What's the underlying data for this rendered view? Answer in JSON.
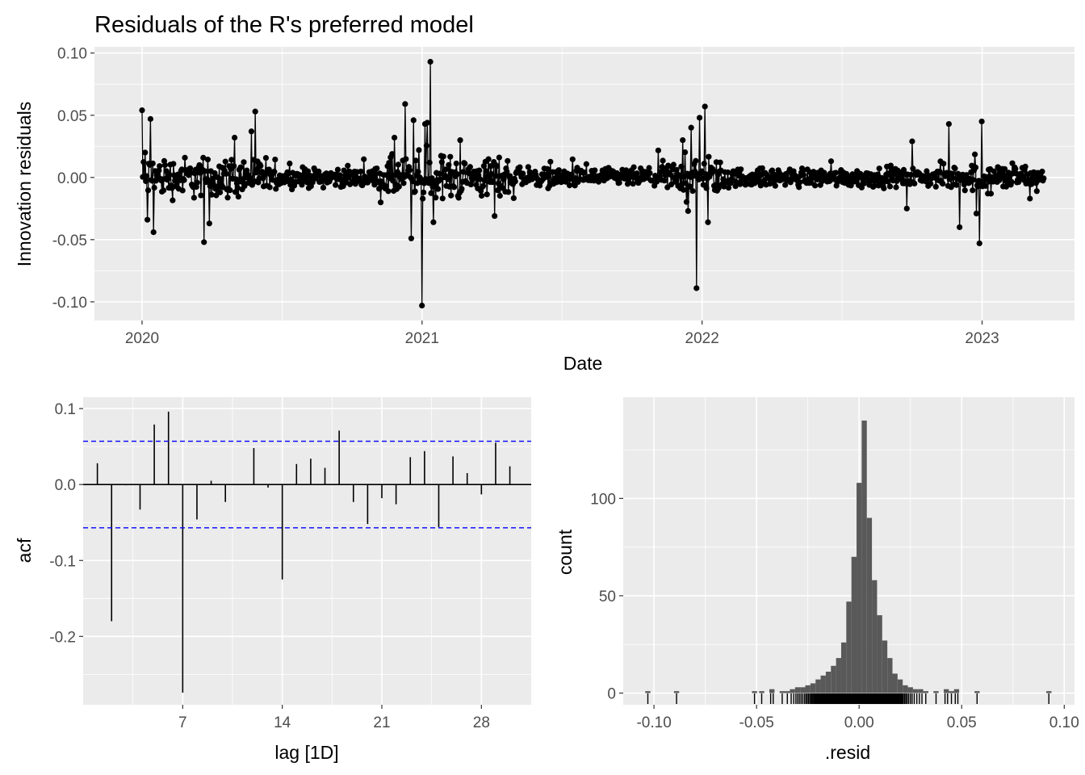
{
  "title": "Residuals of the R's preferred model",
  "chart_data": [
    {
      "id": "residuals",
      "type": "line",
      "xlabel": "Date",
      "ylabel": "Innovation residuals",
      "x_ticks": [
        "2020",
        "2021",
        "2022",
        "2023"
      ],
      "y_ticks": [
        "0.10",
        "0.05",
        "0.00",
        "-0.05",
        "-0.10"
      ],
      "ylim": [
        -0.115,
        0.105
      ],
      "xlim": [
        2019.83,
        2023.33
      ],
      "grid": true,
      "markers": "points",
      "n_points": 1180,
      "spikes": [
        {
          "x": 2020.0,
          "y": 0.054
        },
        {
          "x": 2020.01,
          "y": 0.02
        },
        {
          "x": 2020.02,
          "y": -0.034
        },
        {
          "x": 2020.03,
          "y": 0.047
        },
        {
          "x": 2020.04,
          "y": -0.044
        },
        {
          "x": 2020.22,
          "y": -0.052
        },
        {
          "x": 2020.24,
          "y": -0.037
        },
        {
          "x": 2020.33,
          "y": 0.032
        },
        {
          "x": 2020.39,
          "y": 0.037
        },
        {
          "x": 2020.9,
          "y": 0.032
        },
        {
          "x": 2020.94,
          "y": 0.059
        },
        {
          "x": 2020.96,
          "y": -0.049
        },
        {
          "x": 2020.97,
          "y": 0.046
        },
        {
          "x": 2020.99,
          "y": 0.022
        },
        {
          "x": 2021.0,
          "y": -0.103
        },
        {
          "x": 2021.01,
          "y": 0.043
        },
        {
          "x": 2021.02,
          "y": 0.044
        },
        {
          "x": 2021.03,
          "y": 0.093
        },
        {
          "x": 2021.04,
          "y": -0.036
        },
        {
          "x": 2021.26,
          "y": -0.031
        },
        {
          "x": 2021.93,
          "y": 0.03
        },
        {
          "x": 2021.95,
          "y": -0.027
        },
        {
          "x": 2021.96,
          "y": 0.04
        },
        {
          "x": 2021.98,
          "y": -0.089
        },
        {
          "x": 2021.99,
          "y": 0.048
        },
        {
          "x": 2022.01,
          "y": 0.057
        },
        {
          "x": 2022.02,
          "y": -0.036
        },
        {
          "x": 2022.73,
          "y": -0.025
        },
        {
          "x": 2022.75,
          "y": 0.029
        },
        {
          "x": 2022.88,
          "y": 0.043
        },
        {
          "x": 2022.92,
          "y": -0.04
        },
        {
          "x": 2022.98,
          "y": -0.029
        },
        {
          "x": 2022.99,
          "y": -0.053
        },
        {
          "x": 2023.0,
          "y": 0.045
        },
        {
          "x": 2023.02,
          "y": -0.013
        },
        {
          "x": 2023.17,
          "y": -0.017
        }
      ]
    },
    {
      "id": "acf",
      "type": "bar",
      "xlabel": "lag [1D]",
      "ylabel": "acf",
      "x_ticks": [
        "7",
        "14",
        "21",
        "28"
      ],
      "y_ticks": [
        "0.1",
        "0.0",
        "-0.1",
        "-0.2"
      ],
      "xlim": [
        0,
        31.5
      ],
      "ylim": [
        -0.29,
        0.115
      ],
      "grid": true,
      "lags": [
        1,
        2,
        3,
        4,
        5,
        6,
        7,
        8,
        9,
        10,
        11,
        12,
        13,
        14,
        15,
        16,
        17,
        18,
        19,
        20,
        21,
        22,
        23,
        24,
        25,
        26,
        27,
        28,
        29,
        30
      ],
      "values": [
        0.028,
        -0.18,
        -0.001,
        -0.033,
        0.079,
        0.096,
        -0.274,
        -0.046,
        0.005,
        -0.023,
        0.0,
        0.048,
        -0.004,
        -0.125,
        0.027,
        0.034,
        0.022,
        0.071,
        -0.023,
        -0.052,
        -0.018,
        -0.026,
        0.036,
        0.044,
        -0.056,
        0.037,
        0.015,
        -0.013,
        0.055,
        0.024
      ],
      "confidence_band": [
        0.057,
        -0.057
      ]
    },
    {
      "id": "histogram",
      "type": "bar",
      "xlabel": ".resid",
      "ylabel": "count",
      "x_ticks": [
        "-0.10",
        "-0.05",
        "0.00",
        "0.05",
        "0.10"
      ],
      "y_ticks": [
        "100",
        "50",
        "0"
      ],
      "xlim": [
        -0.115,
        0.105
      ],
      "ylim": [
        -6,
        152
      ],
      "grid": true,
      "bin_width": 0.0025,
      "bins": [
        {
          "x": -0.103,
          "count": 1
        },
        {
          "x": -0.089,
          "count": 1
        },
        {
          "x": -0.051,
          "count": 1
        },
        {
          "x": -0.0475,
          "count": 1
        },
        {
          "x": -0.0425,
          "count": 2
        },
        {
          "x": -0.0375,
          "count": 1
        },
        {
          "x": -0.035,
          "count": 1
        },
        {
          "x": -0.0325,
          "count": 2
        },
        {
          "x": -0.03,
          "count": 3
        },
        {
          "x": -0.0275,
          "count": 3
        },
        {
          "x": -0.025,
          "count": 4
        },
        {
          "x": -0.0225,
          "count": 5
        },
        {
          "x": -0.02,
          "count": 7
        },
        {
          "x": -0.0175,
          "count": 9
        },
        {
          "x": -0.015,
          "count": 11
        },
        {
          "x": -0.0125,
          "count": 14
        },
        {
          "x": -0.01,
          "count": 18
        },
        {
          "x": -0.0075,
          "count": 26
        },
        {
          "x": -0.005,
          "count": 47
        },
        {
          "x": -0.0025,
          "count": 70
        },
        {
          "x": 0.0,
          "count": 108
        },
        {
          "x": 0.0025,
          "count": 140
        },
        {
          "x": 0.005,
          "count": 90
        },
        {
          "x": 0.0075,
          "count": 58
        },
        {
          "x": 0.01,
          "count": 40
        },
        {
          "x": 0.0125,
          "count": 27
        },
        {
          "x": 0.015,
          "count": 18
        },
        {
          "x": 0.0175,
          "count": 10
        },
        {
          "x": 0.02,
          "count": 7
        },
        {
          "x": 0.0225,
          "count": 4
        },
        {
          "x": 0.025,
          "count": 3
        },
        {
          "x": 0.0275,
          "count": 2
        },
        {
          "x": 0.03,
          "count": 2
        },
        {
          "x": 0.0325,
          "count": 1
        },
        {
          "x": 0.0375,
          "count": 1
        },
        {
          "x": 0.0425,
          "count": 2
        },
        {
          "x": 0.045,
          "count": 1
        },
        {
          "x": 0.0475,
          "count": 2
        },
        {
          "x": 0.0575,
          "count": 1
        },
        {
          "x": 0.0925,
          "count": 1
        }
      ],
      "rug": true
    }
  ],
  "colors": {
    "panel_bg": "#ebebeb",
    "grid": "#ffffff",
    "series": "#000000",
    "bar_fill": "#595959",
    "band": "#0000ff",
    "tick_text": "#4d4d4d"
  }
}
